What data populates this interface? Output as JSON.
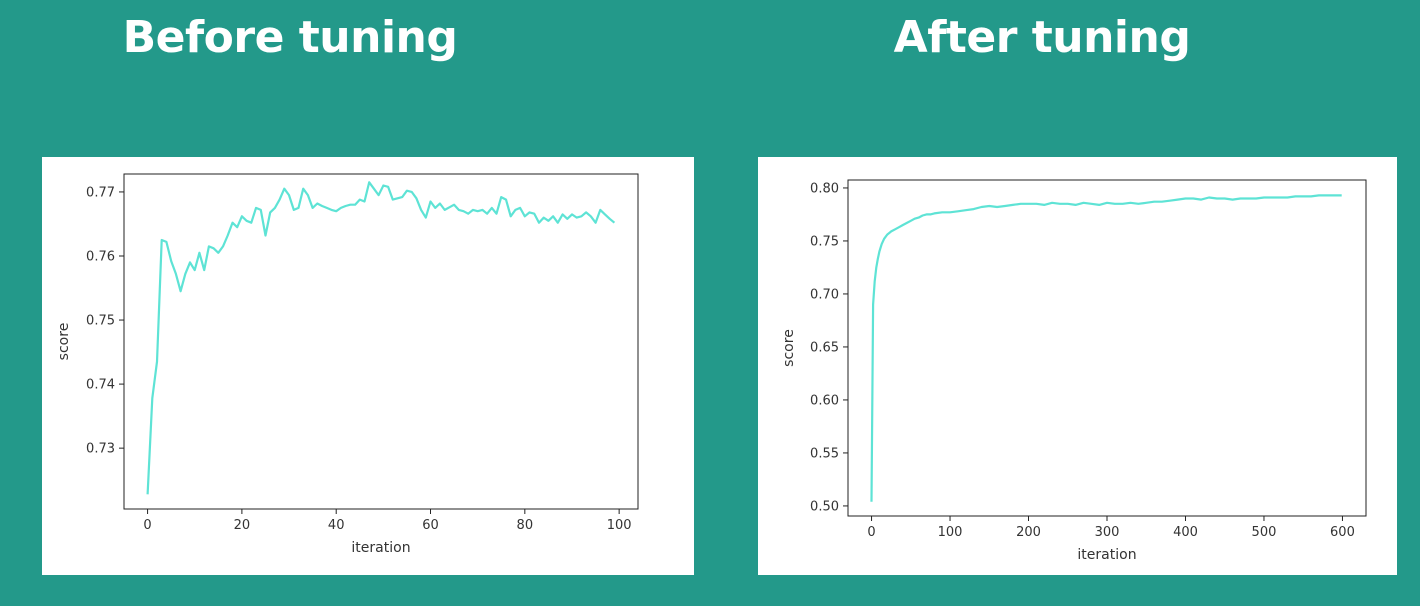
{
  "titles": {
    "left": "Before tuning",
    "right": "After tuning"
  },
  "colors": {
    "background": "#23998a",
    "line": "#5ee3d5",
    "card": "#ffffff"
  },
  "chart_data": [
    {
      "type": "line",
      "xlabel": "iteration",
      "ylabel": "score",
      "xlim": [
        -5,
        104
      ],
      "ylim": [
        0.7205,
        0.7728
      ],
      "xticks": [
        0,
        20,
        40,
        60,
        80,
        100
      ],
      "yticks": [
        0.73,
        0.74,
        0.75,
        0.76,
        0.77
      ],
      "ytick_labels": [
        "0.73",
        "0.74",
        "0.75",
        "0.76",
        "0.77"
      ],
      "grid": false,
      "series": [
        {
          "x": [
            0,
            1,
            2,
            3,
            4,
            5,
            6,
            7,
            8,
            9,
            10,
            11,
            12,
            13,
            14,
            15,
            16,
            17,
            18,
            19,
            20,
            21,
            22,
            23,
            24,
            25,
            26,
            27,
            28,
            29,
            30,
            31,
            32,
            33,
            34,
            35,
            36,
            37,
            38,
            39,
            40,
            41,
            42,
            43,
            44,
            45,
            46,
            47,
            48,
            49,
            50,
            51,
            52,
            53,
            54,
            55,
            56,
            57,
            58,
            59,
            60,
            61,
            62,
            63,
            64,
            65,
            66,
            67,
            68,
            69,
            70,
            71,
            72,
            73,
            74,
            75,
            76,
            77,
            78,
            79,
            80,
            81,
            82,
            83,
            84,
            85,
            86,
            87,
            88,
            89,
            90,
            91,
            92,
            93,
            94,
            95,
            96,
            97,
            98,
            99
          ],
          "values": [
            0.7228,
            0.7378,
            0.7435,
            0.7625,
            0.7622,
            0.7592,
            0.7572,
            0.7545,
            0.7572,
            0.759,
            0.7578,
            0.7605,
            0.7578,
            0.7615,
            0.7612,
            0.7605,
            0.7615,
            0.7632,
            0.7652,
            0.7645,
            0.7662,
            0.7655,
            0.7652,
            0.7675,
            0.7672,
            0.7632,
            0.7668,
            0.7675,
            0.7688,
            0.7705,
            0.7695,
            0.7672,
            0.7675,
            0.7705,
            0.7695,
            0.7675,
            0.7682,
            0.7678,
            0.7675,
            0.7672,
            0.767,
            0.7675,
            0.7678,
            0.768,
            0.768,
            0.7688,
            0.7685,
            0.7715,
            0.7705,
            0.7695,
            0.771,
            0.7708,
            0.7688,
            0.769,
            0.7692,
            0.7702,
            0.77,
            0.769,
            0.7672,
            0.766,
            0.7685,
            0.7675,
            0.7682,
            0.7672,
            0.7676,
            0.768,
            0.7672,
            0.767,
            0.7666,
            0.7672,
            0.767,
            0.7672,
            0.7666,
            0.7675,
            0.7666,
            0.7692,
            0.7688,
            0.7662,
            0.7672,
            0.7675,
            0.7662,
            0.7668,
            0.7666,
            0.7652,
            0.766,
            0.7655,
            0.7662,
            0.7652,
            0.7665,
            0.7658,
            0.7665,
            0.766,
            0.7662,
            0.7668,
            0.7662,
            0.7652,
            0.7672,
            0.7665,
            0.7658,
            0.7652
          ]
        }
      ]
    },
    {
      "type": "line",
      "xlabel": "iteration",
      "ylabel": "score",
      "xlim": [
        -30,
        630
      ],
      "ylim": [
        0.4905,
        0.8075
      ],
      "xticks": [
        0,
        100,
        200,
        300,
        400,
        500,
        600
      ],
      "yticks": [
        0.5,
        0.55,
        0.6,
        0.65,
        0.7,
        0.75,
        0.8
      ],
      "ytick_labels": [
        "0.50",
        "0.55",
        "0.60",
        "0.65",
        "0.70",
        "0.75",
        "0.80"
      ],
      "grid": false,
      "series": [
        {
          "x": [
            0,
            2,
            4,
            6,
            8,
            10,
            13,
            16,
            20,
            25,
            30,
            35,
            40,
            45,
            50,
            55,
            60,
            65,
            70,
            75,
            80,
            90,
            100,
            110,
            120,
            130,
            140,
            150,
            160,
            170,
            180,
            190,
            200,
            210,
            220,
            230,
            240,
            250,
            260,
            270,
            280,
            290,
            300,
            310,
            320,
            330,
            340,
            350,
            360,
            370,
            380,
            390,
            400,
            410,
            420,
            430,
            440,
            450,
            460,
            470,
            480,
            490,
            500,
            510,
            520,
            530,
            540,
            550,
            560,
            570,
            580,
            590,
            599
          ],
          "values": [
            0.504,
            0.69,
            0.712,
            0.725,
            0.733,
            0.74,
            0.747,
            0.752,
            0.756,
            0.759,
            0.761,
            0.763,
            0.765,
            0.767,
            0.769,
            0.771,
            0.772,
            0.774,
            0.775,
            0.775,
            0.776,
            0.777,
            0.777,
            0.778,
            0.779,
            0.78,
            0.782,
            0.783,
            0.782,
            0.783,
            0.784,
            0.785,
            0.785,
            0.785,
            0.784,
            0.786,
            0.785,
            0.785,
            0.784,
            0.786,
            0.785,
            0.784,
            0.786,
            0.785,
            0.785,
            0.786,
            0.785,
            0.786,
            0.787,
            0.787,
            0.788,
            0.789,
            0.79,
            0.79,
            0.789,
            0.791,
            0.79,
            0.79,
            0.789,
            0.79,
            0.79,
            0.79,
            0.791,
            0.791,
            0.791,
            0.791,
            0.792,
            0.792,
            0.792,
            0.793,
            0.793,
            0.793,
            0.793
          ]
        }
      ]
    }
  ]
}
